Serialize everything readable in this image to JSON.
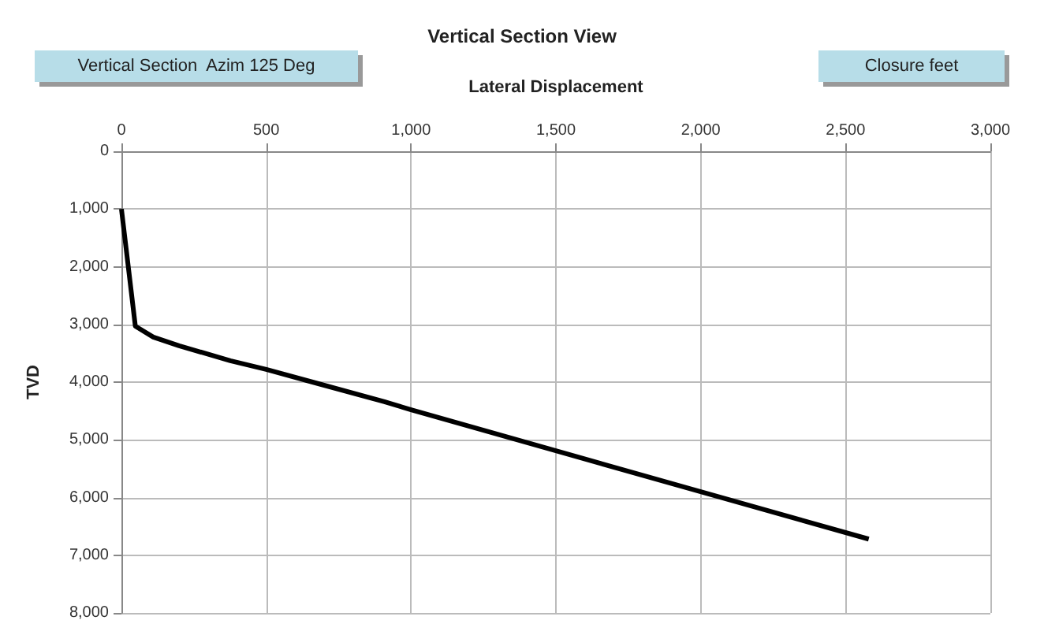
{
  "chart_data": {
    "type": "line",
    "title": "Vertical Section View",
    "xlabel": "Lateral Displacement",
    "ylabel": "TVD",
    "annotations": [
      "Vertical Section  Azim 125 Deg",
      "Closure feet"
    ],
    "series": [
      {
        "color": "#000000",
        "x": [
          0,
          48,
          110,
          199,
          376,
          500,
          660,
          908,
          1000,
          1500,
          2000,
          2580
        ],
        "values": [
          1000,
          3030,
          3220,
          3370,
          3630,
          3780,
          4000,
          4340,
          4480,
          5190,
          5900,
          6720
        ]
      }
    ],
    "xlim": [
      0,
      3000
    ],
    "xticks": [
      0,
      500,
      {
        "value": 1000,
        "label": "1,000"
      },
      {
        "value": 1500,
        "label": "1,500"
      },
      {
        "value": 2000,
        "label": "2,000"
      },
      {
        "value": 2500,
        "label": "2,500"
      },
      {
        "value": 3000,
        "label": "3,000"
      }
    ],
    "ylim": [
      8000,
      0
    ],
    "yticks": [
      0,
      {
        "value": 1000,
        "label": "1,000"
      },
      {
        "value": 2000,
        "label": "2,000"
      },
      {
        "value": 3000,
        "label": "3,000"
      },
      {
        "value": 4000,
        "label": "4,000"
      },
      {
        "value": 5000,
        "label": "5,000"
      },
      {
        "value": 6000,
        "label": "6,000"
      },
      {
        "value": 7000,
        "label": "7,000"
      },
      {
        "value": 8000,
        "label": "8,000"
      }
    ],
    "grid": true,
    "marker": "none",
    "line_style": "solid"
  }
}
